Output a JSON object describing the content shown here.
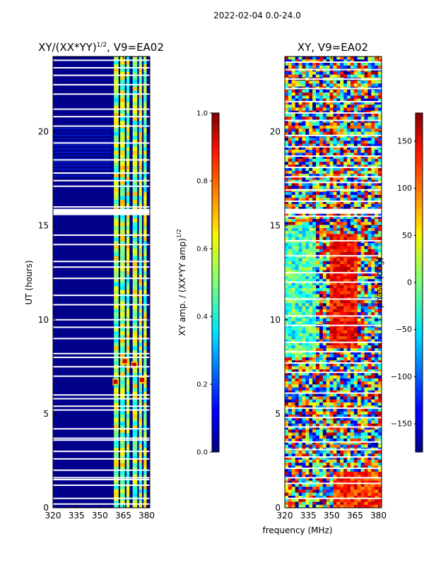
{
  "suptitle": "2022-02-04 0.0-24.0",
  "shared_xlabel": "frequency (MHz)",
  "chart_data": [
    {
      "type": "heatmap",
      "title": "XY/(XX*YY)^1/2, V9=EA02",
      "title_main": "XY/(XX*YY)",
      "title_sup": "1/2",
      "title_tail": ", V9=EA02",
      "ylabel": "UT (hours)",
      "xlim": [
        320,
        382
      ],
      "ylim": [
        0,
        24
      ],
      "xticks": [
        320,
        335,
        350,
        365,
        380
      ],
      "yticks": [
        0,
        5,
        10,
        15,
        20
      ],
      "colormap": "jet",
      "background_color": "#00008b",
      "bright_channel_bands_mhz": [
        [
          359,
          362
        ],
        [
          363,
          366
        ],
        [
          367,
          369
        ],
        [
          371,
          374
        ],
        [
          375,
          377
        ],
        [
          378,
          380
        ]
      ],
      "hot_spots": [
        {
          "freq": 360,
          "ut": 6.7
        },
        {
          "freq": 366,
          "ut": 7.8
        },
        {
          "freq": 372,
          "ut": 7.6
        },
        {
          "freq": 377,
          "ut": 6.8
        }
      ],
      "flag_gap_ut": [
        0.2,
        0.5,
        1.2,
        1.5,
        1.6,
        2.0,
        2.6,
        3.0,
        3.6,
        3.7,
        4.2,
        5.2,
        5.4,
        5.8,
        6.0,
        7.0,
        7.5,
        8.0,
        8.2,
        9.0,
        9.6,
        10.0,
        10.8,
        11.3,
        12.2,
        12.8,
        13.1,
        14.0,
        14.5,
        15.6,
        15.8,
        16.0,
        17.1,
        17.4,
        17.8,
        18.5,
        19.4,
        20.3,
        20.8,
        21.2,
        22.0,
        22.5,
        23.0,
        23.4,
        23.8
      ],
      "colorbar": {
        "label_main": "XY amp. / (XX*YY amp)",
        "label_sup": "1/2",
        "range": [
          0.0,
          1.0
        ],
        "ticks": [
          "0.0",
          "0.2",
          "0.4",
          "0.6",
          "0.8",
          "1.0"
        ]
      }
    },
    {
      "type": "heatmap",
      "title": "XY, V9=EA02",
      "ylabel": "",
      "xlim": [
        320,
        382
      ],
      "ylim": [
        0,
        24
      ],
      "xticks": [
        320,
        335,
        350,
        365,
        380
      ],
      "yticks": [
        0,
        5,
        10,
        15,
        20
      ],
      "colormap": "jet",
      "red_phase_region": {
        "freq_range": [
          348,
          366
        ],
        "ut_range": [
          8.5,
          14.5
        ]
      },
      "flag_gap_ut": [
        0.5,
        1.3,
        1.6,
        2.1,
        2.7,
        3.1,
        3.5,
        4.3,
        4.8,
        5.3,
        6.1,
        7.2,
        7.7,
        8.3,
        8.8,
        9.7,
        10.2,
        11.1,
        12.0,
        12.5,
        13.4,
        14.2,
        15.5,
        15.7,
        16.3,
        16.9,
        17.3,
        17.6,
        18.1,
        18.7,
        19.2,
        19.8,
        20.6,
        21.0,
        21.6,
        22.3,
        22.8,
        23.3,
        23.7
      ],
      "colorbar": {
        "label": "phase (deg)",
        "range": [
          -180,
          180
        ],
        "ticks": [
          "-150",
          "-100",
          "-50",
          "0",
          "50",
          "100",
          "150"
        ]
      }
    }
  ]
}
